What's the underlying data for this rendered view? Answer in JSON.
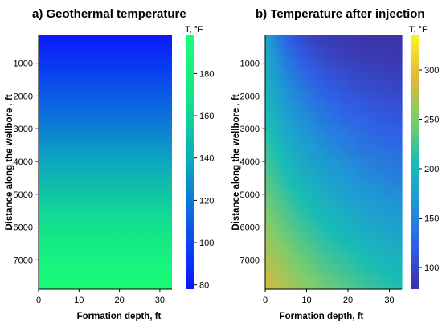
{
  "chart_data": [
    {
      "type": "heatmap",
      "title": "a) Geothermal temperature",
      "xlabel": "Formation depth, ft",
      "ylabel": "Distance along the wellbore , ft",
      "xlim": [
        0,
        33
      ],
      "ylim": [
        7900,
        150
      ],
      "xticks": [
        "0",
        "10",
        "20",
        "30"
      ],
      "yticks": [
        "1000",
        "2000",
        "3000",
        "4000",
        "5000",
        "6000",
        "7000"
      ],
      "colorbar": {
        "title": "T, °F",
        "range": [
          78,
          198
        ],
        "ticks": [
          "80",
          "100",
          "120",
          "140",
          "160",
          "180"
        ],
        "colors": [
          "#0a13ff",
          "#0b5ae6",
          "#0ca7c0",
          "#14e38a",
          "#19ff75"
        ]
      },
      "field": {
        "description": "temperature increases linearly with distance along the wellbore, uniform across formation depth",
        "top_value": 80,
        "bottom_value": 197
      }
    },
    {
      "type": "heatmap",
      "title": "b) Temperature after injection",
      "xlabel": "Formation depth, ft",
      "ylabel": "Distance along the wellbore , ft",
      "xlim": [
        0,
        33
      ],
      "ylim": [
        7900,
        150
      ],
      "xticks": [
        "0",
        "10",
        "20",
        "30"
      ],
      "yticks": [
        "1000",
        "2000",
        "3000",
        "4000",
        "5000",
        "6000",
        "7000"
      ],
      "colorbar": {
        "title": "T, °F",
        "range": [
          78,
          335
        ],
        "ticks": [
          "100",
          "150",
          "200",
          "250",
          "300"
        ],
        "colors": [
          "#3e2fa3",
          "#2f5ee6",
          "#1f96d6",
          "#19bdb4",
          "#7dcc6c",
          "#e0b83a",
          "#fbf228"
        ]
      },
      "field": {
        "description": "hot front near wellbore (depth 0) warmest at the bottom, cooling with distance into the formation and toward the top",
        "near_wellbore_bottom": 290,
        "near_wellbore_top": 185,
        "far_top": 80,
        "far_bottom": 170
      }
    }
  ]
}
